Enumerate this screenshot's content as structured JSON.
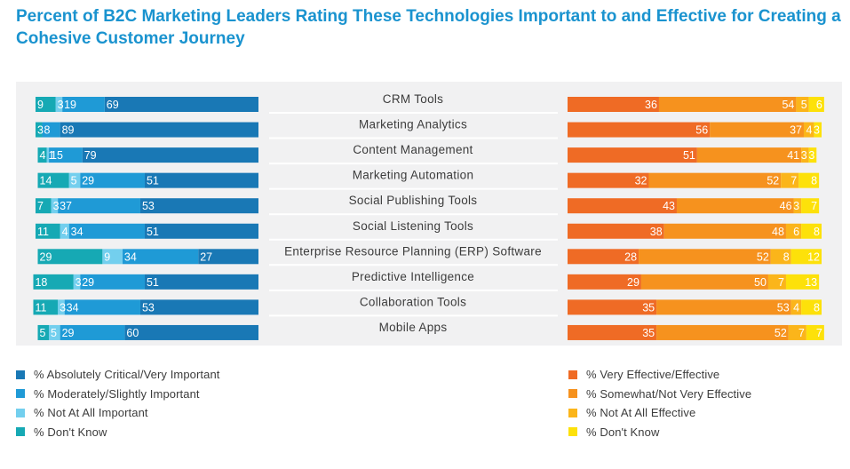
{
  "chart_data": {
    "type": "bar",
    "title": "Percent of B2C Marketing Leaders Rating These Technologies Important to and Effective for Creating a Cohesive Customer Journey",
    "categories": [
      "CRM Tools",
      "Marketing Analytics",
      "Content Management",
      "Marketing Automation",
      "Social Publishing Tools",
      "Social Listening Tools",
      "Enterprise Resource Planning (ERP) Software",
      "Predictive Intelligence",
      "Collaboration Tools",
      "Mobile Apps"
    ],
    "panels": [
      {
        "name": "importance",
        "direction": "right-to-left",
        "series": [
          {
            "name": "% Absolutely Critical/Very Important",
            "color": "#1978b5",
            "values": [
              69,
              89,
              79,
              51,
              53,
              51,
              27,
              51,
              53,
              60
            ]
          },
          {
            "name": "% Moderately/Slightly Important",
            "color": "#1f9ad6",
            "values": [
              19,
              8,
              15,
              29,
              37,
              34,
              34,
              29,
              34,
              29
            ]
          },
          {
            "name": "% Not At All Important",
            "color": "#73cfee",
            "values": [
              3,
              0,
              1,
              5,
              3,
              4,
              9,
              3,
              3,
              5
            ]
          },
          {
            "name": "% Don't Know",
            "color": "#16a9b4",
            "values": [
              9,
              3,
              4,
              14,
              7,
              11,
              29,
              18,
              11,
              5
            ]
          }
        ]
      },
      {
        "name": "effectiveness",
        "direction": "left-to-right",
        "series": [
          {
            "name": "% Very Effective/Effective",
            "color": "#ef6b25",
            "values": [
              36,
              56,
              51,
              32,
              43,
              38,
              28,
              29,
              35,
              35
            ]
          },
          {
            "name": "% Somewhat/Not Very Effective",
            "color": "#f6921e",
            "values": [
              54,
              37,
              41,
              52,
              46,
              48,
              52,
              50,
              53,
              52
            ]
          },
          {
            "name": "% Not At All Effective",
            "color": "#fbb51a",
            "values": [
              5,
              4,
              3,
              7,
              3,
              6,
              8,
              7,
              4,
              7
            ]
          },
          {
            "name": "% Don't Know",
            "color": "#fde10a",
            "values": [
              6,
              3,
              3,
              8,
              7,
              8,
              12,
              13,
              8,
              7
            ]
          }
        ]
      }
    ],
    "legend": {
      "left": "bottom-left",
      "right": "bottom-right"
    },
    "xlim": [
      0,
      100
    ]
  }
}
